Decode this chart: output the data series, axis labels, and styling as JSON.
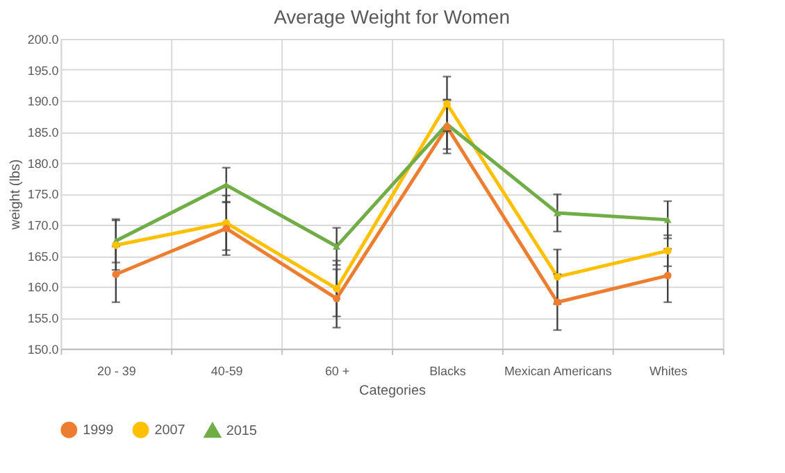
{
  "chart_data": {
    "type": "line",
    "title": "Average Weight for Women",
    "xlabel": "Categories",
    "ylabel": "weight (lbs)",
    "categories": [
      "20 - 39",
      "40-59",
      "60 +",
      "Blacks",
      "Mexican Americans",
      "Whites"
    ],
    "series": [
      {
        "name": "1999",
        "color": "#ed7d31",
        "marker": "circle",
        "values": [
          162.0,
          169.4,
          158.1,
          185.8,
          157.5,
          161.8
        ],
        "errors": [
          4.5,
          4.3,
          4.7,
          4.3,
          4.5,
          4.3
        ]
      },
      {
        "name": "2007",
        "color": "#ffc000",
        "marker": "circle",
        "values": [
          166.7,
          170.3,
          159.7,
          189.5,
          161.6,
          165.8
        ],
        "errors": [
          4.0,
          4.4,
          4.5,
          4.4,
          4.4,
          2.5
        ]
      },
      {
        "name": "2015",
        "color": "#70ad47",
        "marker": "triangle",
        "values": [
          167.4,
          176.4,
          166.5,
          186.2,
          171.9,
          170.8
        ],
        "errors": [
          3.5,
          2.8,
          3.0,
          4.0,
          3.0,
          3.0
        ]
      }
    ],
    "ylim": [
      150,
      200
    ],
    "yticks": [
      {
        "value": 150,
        "label": "150.0"
      },
      {
        "value": 155,
        "label": "155.0"
      },
      {
        "value": 160,
        "label": "160.0"
      },
      {
        "value": 165,
        "label": "165.0"
      },
      {
        "value": 170,
        "label": "170.0"
      },
      {
        "value": 175,
        "label": "175.0"
      },
      {
        "value": 180,
        "label": "180.0"
      },
      {
        "value": 185,
        "label": "185.0"
      },
      {
        "value": 190,
        "label": "190.0"
      },
      {
        "value": 195,
        "label": "195.0"
      },
      {
        "value": 200,
        "label": "200.0"
      }
    ],
    "grid": true,
    "legend": "bottom",
    "line_style": "solid"
  }
}
